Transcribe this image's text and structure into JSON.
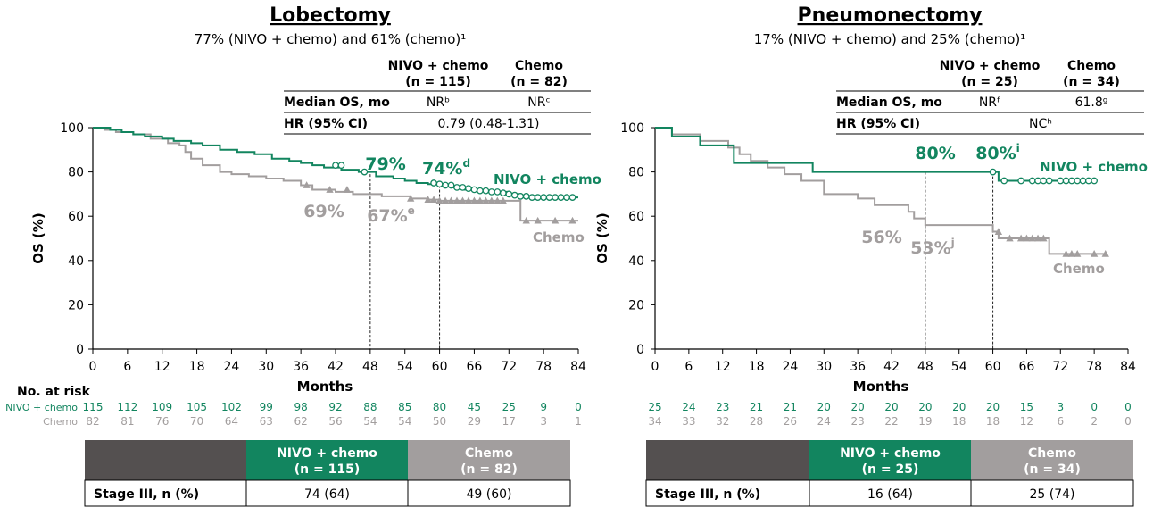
{
  "colors": {
    "nivo": "#12855f",
    "chemo": "#a29e9e",
    "dark": "#545050",
    "grid": "#000000"
  },
  "chart_data": [
    {
      "type": "line",
      "panel_id": "lobectomy",
      "title": "Lobectomy",
      "subtitle": "77% (NIVO + chemo) and 61% (chemo)¹",
      "xlabel": "Months",
      "ylabel": "OS (%)",
      "xlim": [
        0,
        84
      ],
      "ylim": [
        0,
        100
      ],
      "xticks": [
        0,
        6,
        12,
        18,
        24,
        30,
        36,
        42,
        48,
        54,
        60,
        66,
        72,
        78,
        84
      ],
      "yticks": [
        0,
        20,
        40,
        60,
        80,
        100
      ],
      "ref_lines_months": [
        48,
        60
      ],
      "stats": {
        "col1_header": [
          "NIVO + chemo",
          "(n = 115)"
        ],
        "col2_header": [
          "Chemo",
          "(n = 82)"
        ],
        "median_label": "Median OS, mo",
        "median_nivo": "NRᵇ",
        "median_chemo": "NRᶜ",
        "hr_label": "HR (95% CI)",
        "hr_value": "0.79 (0.48-1.31)"
      },
      "series": [
        {
          "name": "NIVO + chemo",
          "legend": "NIVO + chemo",
          "color_key": "nivo",
          "x": [
            0,
            3,
            5,
            7,
            9,
            12,
            14,
            17,
            19,
            22,
            25,
            28,
            31,
            34,
            36,
            38,
            40,
            43,
            46,
            49,
            52,
            54,
            56,
            58,
            60,
            62,
            64,
            66,
            68,
            72,
            74,
            78,
            80,
            84
          ],
          "y": [
            100,
            99,
            98,
            97,
            96,
            95,
            94,
            93,
            92,
            90,
            89,
            88,
            86,
            85,
            84,
            83,
            82,
            81,
            80,
            78,
            77,
            76,
            75,
            74.5,
            74,
            73,
            72,
            71.5,
            71,
            70,
            69,
            68.5,
            68.5,
            68.5
          ],
          "censor_x": [
            42,
            43,
            47,
            59,
            60,
            61,
            62,
            63,
            64,
            65,
            66,
            67,
            68,
            69,
            70,
            71,
            72,
            73,
            74,
            75,
            76,
            77,
            78,
            79,
            80,
            81,
            82,
            83
          ],
          "censor_y": [
            83,
            83,
            80,
            75,
            74.5,
            74,
            74,
            73,
            73,
            72.5,
            72,
            71.5,
            71.5,
            71,
            71,
            70.5,
            70,
            69.5,
            69,
            69,
            68.5,
            68.5,
            68.5,
            68.5,
            68.5,
            68.5,
            68.5,
            68.5
          ],
          "landmarks": [
            {
              "month": 48,
              "label": "79%",
              "value": 79
            },
            {
              "month": 60,
              "label": "74%",
              "sup": "d",
              "value": 74
            }
          ]
        },
        {
          "name": "Chemo",
          "legend": "Chemo",
          "color_key": "chemo",
          "x": [
            0,
            2,
            4,
            7,
            10,
            13,
            15,
            16,
            17,
            19,
            22,
            24,
            27,
            30,
            33,
            36,
            38,
            42,
            45,
            50,
            55,
            58,
            60,
            72,
            74,
            78,
            84
          ],
          "y": [
            100,
            99,
            98,
            97,
            95,
            93,
            92,
            89,
            86,
            83,
            80,
            79,
            78,
            77,
            76,
            74,
            72,
            71,
            70,
            69,
            68,
            67.5,
            67,
            67,
            58,
            58,
            58
          ],
          "censor_x": [
            37,
            41,
            44,
            55,
            58,
            59,
            60,
            61,
            62,
            63,
            64,
            65,
            66,
            67,
            68,
            69,
            70,
            71,
            75,
            77,
            80,
            83
          ],
          "censor_y": [
            74,
            72,
            72,
            68,
            67.5,
            67.5,
            67,
            67,
            67,
            67,
            67,
            67,
            67,
            67,
            67,
            67,
            67,
            67,
            58,
            58,
            58,
            58
          ],
          "landmarks": [
            {
              "month": 48,
              "label": "69%",
              "value": 69
            },
            {
              "month": 60,
              "label": "67%",
              "sup": "e",
              "value": 67
            }
          ]
        }
      ],
      "at_risk": {
        "title": "No. at risk",
        "rows": [
          {
            "label": "NIVO + chemo",
            "color_key": "nivo",
            "values": [
              "115",
              "112",
              "109",
              "105",
              "102",
              "99",
              "98",
              "92",
              "88",
              "85",
              "80",
              "45",
              "25",
              "9",
              "0"
            ]
          },
          {
            "label": "Chemo",
            "color_key": "chemo",
            "values": [
              "82",
              "81",
              "76",
              "70",
              "64",
              "63",
              "62",
              "56",
              "54",
              "54",
              "50",
              "29",
              "17",
              "3",
              "1"
            ]
          }
        ]
      },
      "stage_table": {
        "nivo_header": [
          "NIVO + chemo",
          "(n = 115)"
        ],
        "chemo_header": [
          "Chemo",
          "(n = 82)"
        ],
        "row_label": "Stage III, n (%)",
        "nivo_value": "74 (64)",
        "chemo_value": "49 (60)"
      }
    },
    {
      "type": "line",
      "panel_id": "pneumonectomy",
      "title": "Pneumonectomy",
      "subtitle": "17% (NIVO + chemo) and 25% (chemo)¹",
      "xlabel": "Months",
      "ylabel": "OS (%)",
      "xlim": [
        0,
        84
      ],
      "ylim": [
        0,
        100
      ],
      "xticks": [
        0,
        6,
        12,
        18,
        24,
        30,
        36,
        42,
        48,
        54,
        60,
        66,
        72,
        78,
        84
      ],
      "yticks": [
        0,
        20,
        40,
        60,
        80,
        100
      ],
      "ref_lines_months": [
        48,
        60
      ],
      "stats": {
        "col1_header": [
          "NIVO + chemo",
          "(n = 25)"
        ],
        "col2_header": [
          "Chemo",
          "(n = 34)"
        ],
        "median_label": "Median OS, mo",
        "median_nivo": "NRᶠ",
        "median_chemo": "61.8ᵍ",
        "hr_label": "HR (95% CI)",
        "hr_value": "NCʰ"
      },
      "series": [
        {
          "name": "NIVO + chemo",
          "legend": "NIVO + chemo",
          "color_key": "nivo",
          "x": [
            0,
            3,
            8,
            14,
            28,
            60,
            61,
            78
          ],
          "y": [
            100,
            96,
            92,
            84,
            80,
            80,
            76,
            76
          ],
          "censor_x": [
            60,
            62,
            65,
            67,
            68,
            69,
            70,
            72,
            73,
            74,
            75,
            76,
            77,
            78
          ],
          "censor_y": [
            80,
            76,
            76,
            76,
            76,
            76,
            76,
            76,
            76,
            76,
            76,
            76,
            76,
            76
          ],
          "landmarks": [
            {
              "month": 48,
              "label": "80%",
              "value": 80
            },
            {
              "month": 60,
              "label": "80%",
              "sup": "i",
              "value": 80
            }
          ]
        },
        {
          "name": "Chemo",
          "legend": "Chemo",
          "color_key": "chemo",
          "x": [
            0,
            3,
            8,
            13,
            15,
            17,
            20,
            23,
            26,
            30,
            36,
            39,
            45,
            46,
            48,
            60,
            61,
            63,
            69,
            70,
            80
          ],
          "y": [
            100,
            97,
            94,
            91,
            88,
            85,
            82,
            79,
            76,
            70,
            68,
            65,
            62,
            59,
            56,
            53,
            50,
            50,
            50,
            43,
            43
          ],
          "censor_x": [
            61,
            63,
            65,
            66,
            67,
            68,
            69,
            73,
            74,
            75,
            78,
            80
          ],
          "censor_y": [
            53,
            50,
            50,
            50,
            50,
            50,
            50,
            43,
            43,
            43,
            43,
            43
          ],
          "landmarks": [
            {
              "month": 48,
              "label": "56%",
              "value": 56
            },
            {
              "month": 60,
              "label": "53%",
              "sup": "j",
              "value": 53
            }
          ]
        }
      ],
      "at_risk": {
        "title": "",
        "rows": [
          {
            "label": "",
            "color_key": "nivo",
            "values": [
              "25",
              "24",
              "23",
              "21",
              "21",
              "20",
              "20",
              "20",
              "20",
              "20",
              "20",
              "15",
              "3",
              "0",
              "0"
            ]
          },
          {
            "label": "",
            "color_key": "chemo",
            "values": [
              "34",
              "33",
              "32",
              "28",
              "26",
              "24",
              "23",
              "22",
              "19",
              "18",
              "18",
              "12",
              "6",
              "2",
              "0"
            ]
          }
        ]
      },
      "stage_table": {
        "nivo_header": [
          "NIVO + chemo",
          "(n = 25)"
        ],
        "chemo_header": [
          "Chemo",
          "(n = 34)"
        ],
        "row_label": "Stage III, n (%)",
        "nivo_value": "16 (64)",
        "chemo_value": "25 (74)"
      }
    }
  ]
}
